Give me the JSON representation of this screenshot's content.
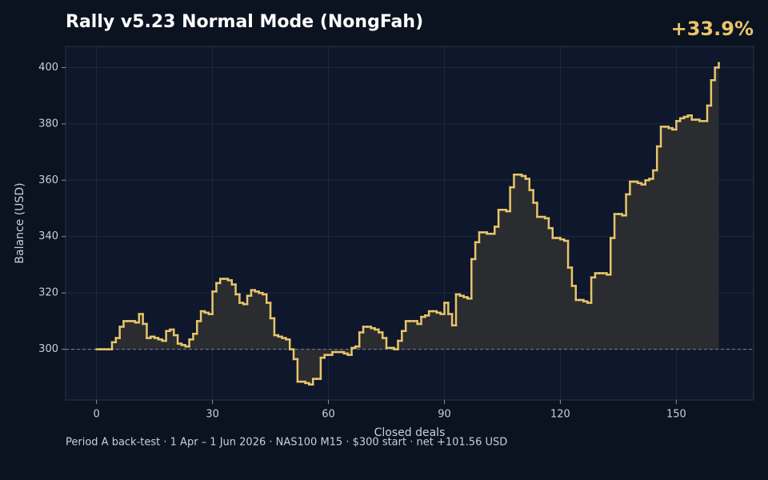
{
  "chart_data": {
    "type": "step",
    "title": "Rally v5.23 Normal Mode (NongFah)",
    "headline": "+33.9%",
    "xlabel": "Closed deals",
    "ylabel": "Balance (USD)",
    "footer": "Period A back-test  ·  1 Apr – 1 Jun 2026  ·  NAS100 M15  ·  $300 start  ·  net +101.56 USD",
    "xlim": [
      -8,
      170
    ],
    "ylim": [
      282,
      407.5
    ],
    "xticks": [
      0,
      30,
      60,
      90,
      120,
      150
    ],
    "yticks": [
      300,
      320,
      340,
      360,
      380,
      400
    ],
    "baseline": 300,
    "grid": true,
    "x": [
      0,
      1,
      2,
      3,
      4,
      5,
      6,
      7,
      8,
      9,
      10,
      11,
      12,
      13,
      14,
      15,
      16,
      17,
      18,
      19,
      20,
      21,
      22,
      23,
      24,
      25,
      26,
      27,
      28,
      29,
      30,
      31,
      32,
      33,
      34,
      35,
      36,
      37,
      38,
      39,
      40,
      41,
      42,
      43,
      44,
      45,
      46,
      47,
      48,
      49,
      50,
      51,
      52,
      53,
      54,
      55,
      56,
      57,
      58,
      59,
      60,
      61,
      62,
      63,
      64,
      65,
      66,
      67,
      68,
      69,
      70,
      71,
      72,
      73,
      74,
      75,
      76,
      77,
      78,
      79,
      80,
      81,
      82,
      83,
      84,
      85,
      86,
      87,
      88,
      89,
      90,
      91,
      92,
      93,
      94,
      95,
      96,
      97,
      98,
      99,
      100,
      101,
      102,
      103,
      104,
      105,
      106,
      107,
      108,
      109,
      110,
      111,
      112,
      113,
      114,
      115,
      116,
      117,
      118,
      119,
      120,
      121,
      122,
      123,
      124,
      125,
      126,
      127,
      128,
      129,
      130,
      131,
      132,
      133,
      134,
      135,
      136,
      137,
      138,
      139,
      140,
      141,
      142,
      143,
      144,
      145,
      146,
      147,
      148,
      149,
      150,
      151,
      152,
      153,
      154,
      155,
      156,
      157,
      158,
      159,
      160,
      161
    ],
    "series": [
      {
        "name": "Balance",
        "color": "#e8c56a",
        "values": [
          300,
          300,
          300,
          300,
          302.5,
          304,
          308,
          310,
          310,
          310,
          309.5,
          312.5,
          309,
          304,
          304.5,
          304,
          303.5,
          303,
          306.5,
          307,
          305,
          302,
          301.5,
          301,
          303.5,
          305.5,
          310,
          313.5,
          313,
          312.5,
          320.5,
          323.5,
          325,
          325,
          324.5,
          323,
          319.5,
          316.5,
          316,
          319,
          321,
          320.5,
          320,
          319.5,
          316.5,
          311,
          305,
          304.5,
          304,
          303.5,
          300,
          296.5,
          288.5,
          288.5,
          288,
          287.5,
          289.5,
          289.5,
          297,
          298,
          298,
          299,
          299,
          299,
          298.5,
          298,
          300.5,
          301,
          306,
          308,
          308,
          307.5,
          307,
          306,
          304,
          300.5,
          300.5,
          300,
          303,
          306.5,
          310,
          310,
          310,
          309,
          311.5,
          312,
          313.5,
          313.5,
          313,
          312.5,
          316.5,
          312.5,
          308.5,
          319.5,
          319,
          318.5,
          318,
          332,
          338,
          341.5,
          341.5,
          341,
          341,
          343.5,
          349.5,
          349.5,
          349,
          357.5,
          362,
          362,
          361.5,
          360.5,
          356.5,
          352,
          347,
          347,
          346.5,
          343,
          339.5,
          339.5,
          339,
          338.5,
          329,
          322.5,
          317.5,
          317.5,
          317,
          316.5,
          325.5,
          327,
          327,
          327,
          326.5,
          339.5,
          348,
          348,
          347.5,
          355,
          359.5,
          359.5,
          359,
          358.5,
          360,
          360.5,
          363.5,
          372,
          379,
          379,
          378.5,
          378,
          381,
          382,
          382.5,
          383,
          381.5,
          381.5,
          381,
          381,
          386.5,
          395.5,
          400,
          401.56
        ]
      }
    ]
  }
}
